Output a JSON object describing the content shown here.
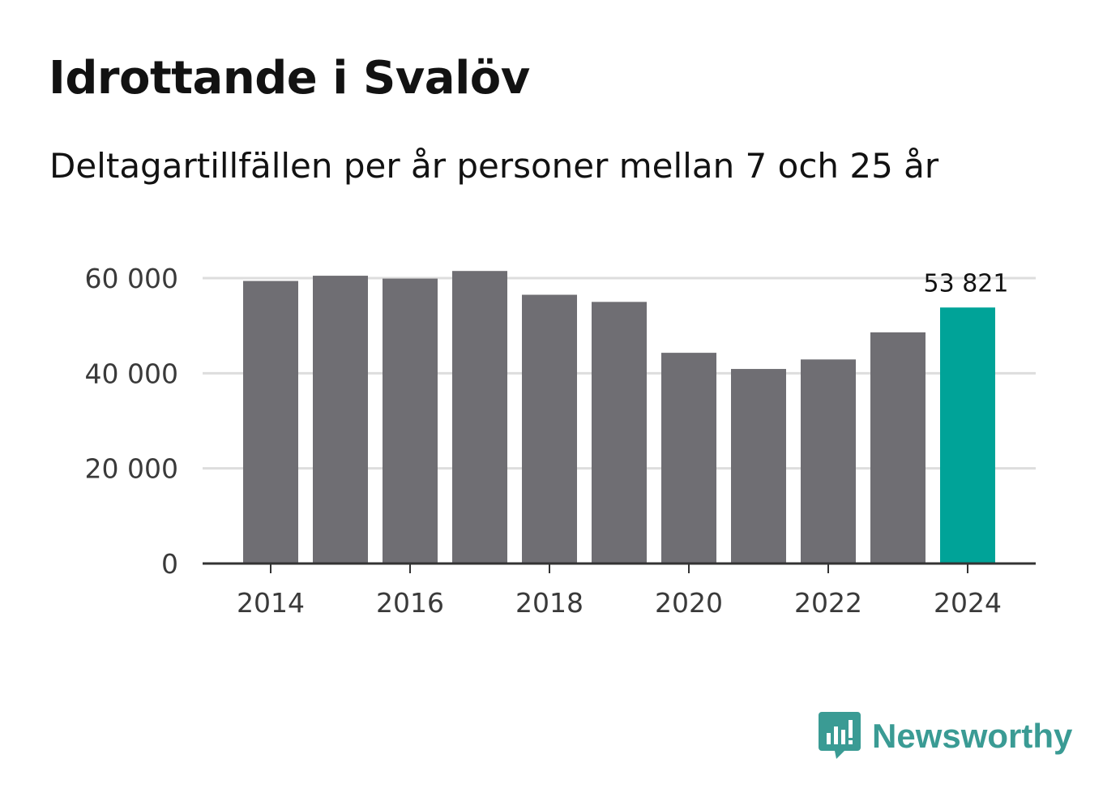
{
  "title": "Idrottande i Svalöv",
  "subtitle": "Deltagartillfällen per år personer mellan 7 och 25 år",
  "brand": {
    "name": "Newsworthy",
    "logo_icon": "newsworthy-bar-chart-icon"
  },
  "colors": {
    "bar_default": "#6f6e73",
    "bar_highlight": "#00a398",
    "gridline": "#dddddd",
    "axis": "#333333",
    "brand": "#3a9b94"
  },
  "chart_data": {
    "type": "bar",
    "title": "Idrottande i Svalöv",
    "subtitle": "Deltagartillfällen per år personer mellan 7 och 25 år",
    "xlabel": "",
    "ylabel": "",
    "categories": [
      2014,
      2015,
      2016,
      2017,
      2018,
      2019,
      2020,
      2021,
      2022,
      2023,
      2024
    ],
    "values": [
      59400,
      60500,
      59900,
      61500,
      56500,
      55000,
      44300,
      40900,
      42900,
      48600,
      53821
    ],
    "highlight_index": 10,
    "value_label": "53 821",
    "ylim": [
      0,
      60000
    ],
    "yticks": [
      0,
      20000,
      40000,
      60000
    ],
    "ytick_labels": [
      "0",
      "20 000",
      "40 000",
      "60 000"
    ],
    "xticks": [
      2014,
      2016,
      2018,
      2020,
      2022,
      2024
    ],
    "xtick_labels": [
      "2014",
      "2016",
      "2018",
      "2020",
      "2022",
      "2024"
    ],
    "grid": true
  }
}
